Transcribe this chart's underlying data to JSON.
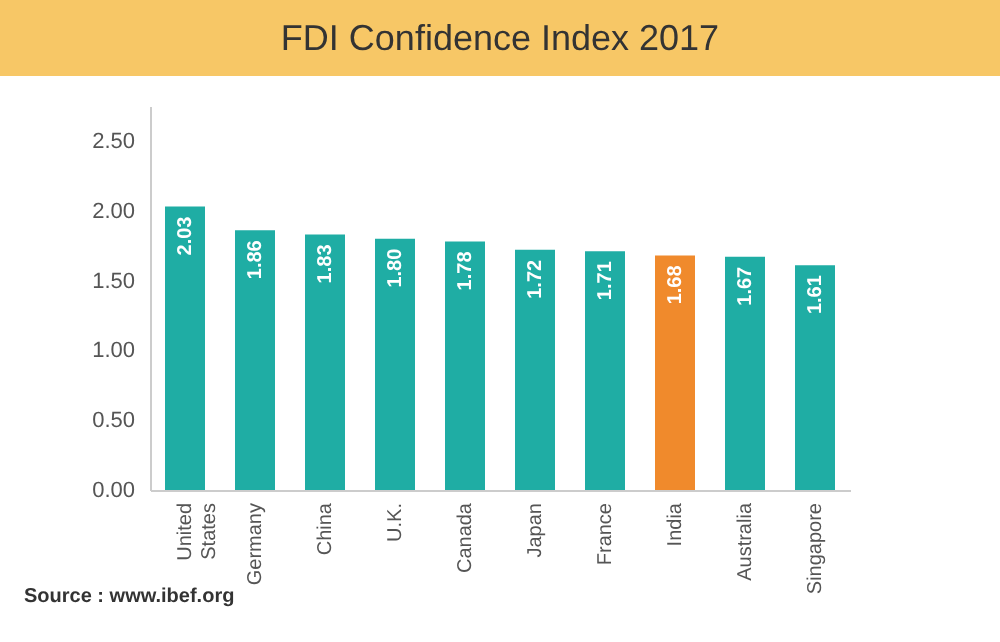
{
  "chart_data": {
    "type": "bar",
    "title": "FDI Confidence Index 2017",
    "categories": [
      "United States",
      "Germany",
      "China",
      "U.K.",
      "Canada",
      "Japan",
      "France",
      "India",
      "Australia",
      "Singapore"
    ],
    "values": [
      2.03,
      1.86,
      1.83,
      1.8,
      1.78,
      1.72,
      1.71,
      1.68,
      1.67,
      1.61
    ],
    "value_labels": [
      "2.03",
      "1.86",
      "1.83",
      "1.80",
      "1.78",
      "1.72",
      "1.71",
      "1.68",
      "1.67",
      "1.61"
    ],
    "colors": [
      "#1fada4",
      "#1fada4",
      "#1fada4",
      "#1fada4",
      "#1fada4",
      "#1fada4",
      "#1fada4",
      "#f08a2c",
      "#1fada4",
      "#1fada4"
    ],
    "ylim": [
      0,
      2.75
    ],
    "yticks": [
      {
        "value": 0,
        "label": "0.00"
      },
      {
        "value": 0.5,
        "label": "0.50"
      },
      {
        "value": 1,
        "label": "1.00"
      },
      {
        "value": 1.5,
        "label": "1.50"
      },
      {
        "value": 2,
        "label": "2.00"
      },
      {
        "value": 2.5,
        "label": "2.50"
      }
    ],
    "grid": false,
    "annotations": [
      "Source : www.ibef.org"
    ]
  }
}
